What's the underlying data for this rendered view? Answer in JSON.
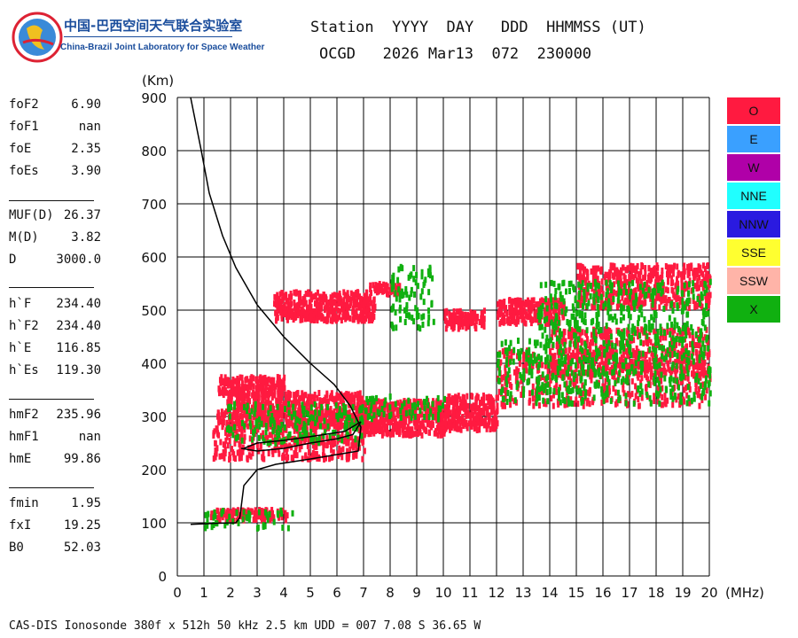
{
  "header": {
    "org_cn": "中国-巴西空间天气联合实验室",
    "org_en": "China-Brazil Joint Laboratory for Space Weather",
    "line1": "Station  YYYY  DAY   DDD  HHMMSS (UT)",
    "line2": "OCGD   2026 Mar13  072  230000"
  },
  "params": [
    {
      "label": "foF2",
      "value": "6.90"
    },
    {
      "label": "foF1",
      "value": "nan"
    },
    {
      "label": "foE",
      "value": "2.35"
    },
    {
      "label": "foEs",
      "value": "3.90"
    },
    {
      "label": "MUF(D)",
      "value": "26.37"
    },
    {
      "label": "M(D)",
      "value": "3.82"
    },
    {
      "label": "D",
      "value": "3000.0"
    },
    {
      "label": "h`F",
      "value": "234.40"
    },
    {
      "label": "h`F2",
      "value": "234.40"
    },
    {
      "label": "h`E",
      "value": "116.85"
    },
    {
      "label": "h`Es",
      "value": "119.30"
    },
    {
      "label": "hmF2",
      "value": "235.96"
    },
    {
      "label": "hmF1",
      "value": "nan"
    },
    {
      "label": "hmE",
      "value": "99.86"
    },
    {
      "label": "fmin",
      "value": "1.95"
    },
    {
      "label": "fxI",
      "value": "19.25"
    },
    {
      "label": "B0",
      "value": "52.03"
    }
  ],
  "footer": "CAS-DIS Ionosonde 380f x 512h 50 kHz 2.5 km UDD = 007 7.08 S 36.65 W",
  "legend": [
    {
      "label": "O",
      "color": "#ff1a40"
    },
    {
      "label": "E",
      "color": "#3aa0ff"
    },
    {
      "label": "W",
      "color": "#b000a8"
    },
    {
      "label": "NNE",
      "color": "#20ffff"
    },
    {
      "label": "NNW",
      "color": "#2a1ae0"
    },
    {
      "label": "SSE",
      "color": "#ffff30"
    },
    {
      "label": "SSW",
      "color": "#ffb4a8"
    },
    {
      "label": "X",
      "color": "#10b010"
    }
  ],
  "chart_data": {
    "type": "scatter",
    "xlabel": "(MHz)",
    "ylabel": "(Km)",
    "xlim": [
      0,
      20
    ],
    "ylim": [
      0,
      900
    ],
    "x_ticks": [
      0,
      1,
      2,
      3,
      4,
      5,
      6,
      7,
      8,
      9,
      10,
      11,
      12,
      13,
      14,
      15,
      16,
      17,
      18,
      19,
      20
    ],
    "y_ticks": [
      0,
      100,
      200,
      300,
      400,
      500,
      600,
      700,
      800,
      900
    ],
    "grid": true,
    "traces": [
      {
        "name": "O",
        "color": "#ff1a40",
        "clusters": [
          {
            "x": [
              1.2,
              4.1
            ],
            "y": [
              110,
              130
            ]
          },
          {
            "x": [
              1.5,
              4.0
            ],
            "y": [
              345,
              380
            ]
          },
          {
            "x": [
              1.3,
              7.0
            ],
            "y": [
              225,
              320
            ]
          },
          {
            "x": [
              1.8,
              7.0
            ],
            "y": [
              285,
              350
            ]
          },
          {
            "x": [
              6.8,
              10.0
            ],
            "y": [
              270,
              335
            ]
          },
          {
            "x": [
              10.0,
              12.0
            ],
            "y": [
              280,
              345
            ]
          },
          {
            "x": [
              12.0,
              20.0
            ],
            "y": [
              325,
              430
            ]
          },
          {
            "x": [
              14.0,
              20.0
            ],
            "y": [
              380,
              470
            ]
          },
          {
            "x": [
              3.6,
              7.4
            ],
            "y": [
              485,
              540
            ]
          },
          {
            "x": [
              7.2,
              8.4
            ],
            "y": [
              535,
              555
            ]
          },
          {
            "x": [
              10.0,
              11.5
            ],
            "y": [
              470,
              505
            ]
          },
          {
            "x": [
              12.0,
              14.5
            ],
            "y": [
              480,
              525
            ]
          },
          {
            "x": [
              15.0,
              20.0
            ],
            "y": [
              510,
              590
            ]
          }
        ]
      },
      {
        "name": "X",
        "color": "#10b010",
        "clusters": [
          {
            "x": [
              1.0,
              4.3
            ],
            "y": [
              95,
              130
            ]
          },
          {
            "x": [
              1.8,
              7.0
            ],
            "y": [
              255,
              330
            ]
          },
          {
            "x": [
              7.0,
              10.0
            ],
            "y": [
              300,
              345
            ]
          },
          {
            "x": [
              12.0,
              20.0
            ],
            "y": [
              330,
              450
            ]
          },
          {
            "x": [
              13.5,
              20.0
            ],
            "y": [
              450,
              560
            ]
          },
          {
            "x": [
              8.0,
              9.6
            ],
            "y": [
              470,
              590
            ]
          }
        ]
      }
    ],
    "true_height_profile": {
      "x": [
        0.5,
        0.9,
        1.2,
        1.7,
        2.2,
        3.0,
        4.0,
        5.0,
        5.9,
        6.5,
        6.9,
        6.8,
        5.0,
        3.7,
        3.0,
        2.5,
        2.35,
        2.2,
        1.4,
        0.5
      ],
      "y": [
        900,
        800,
        720,
        640,
        580,
        510,
        450,
        400,
        360,
        320,
        280,
        235,
        220,
        210,
        200,
        170,
        110,
        100,
        99,
        97
      ]
    },
    "virtual_trace": {
      "x": [
        2.4,
        3.0,
        4.0,
        5.0,
        6.0,
        6.6,
        6.9,
        6.3,
        5.0,
        4.0,
        3.0,
        2.5
      ],
      "y": [
        240,
        235,
        240,
        250,
        258,
        266,
        290,
        272,
        262,
        255,
        250,
        240
      ]
    }
  }
}
